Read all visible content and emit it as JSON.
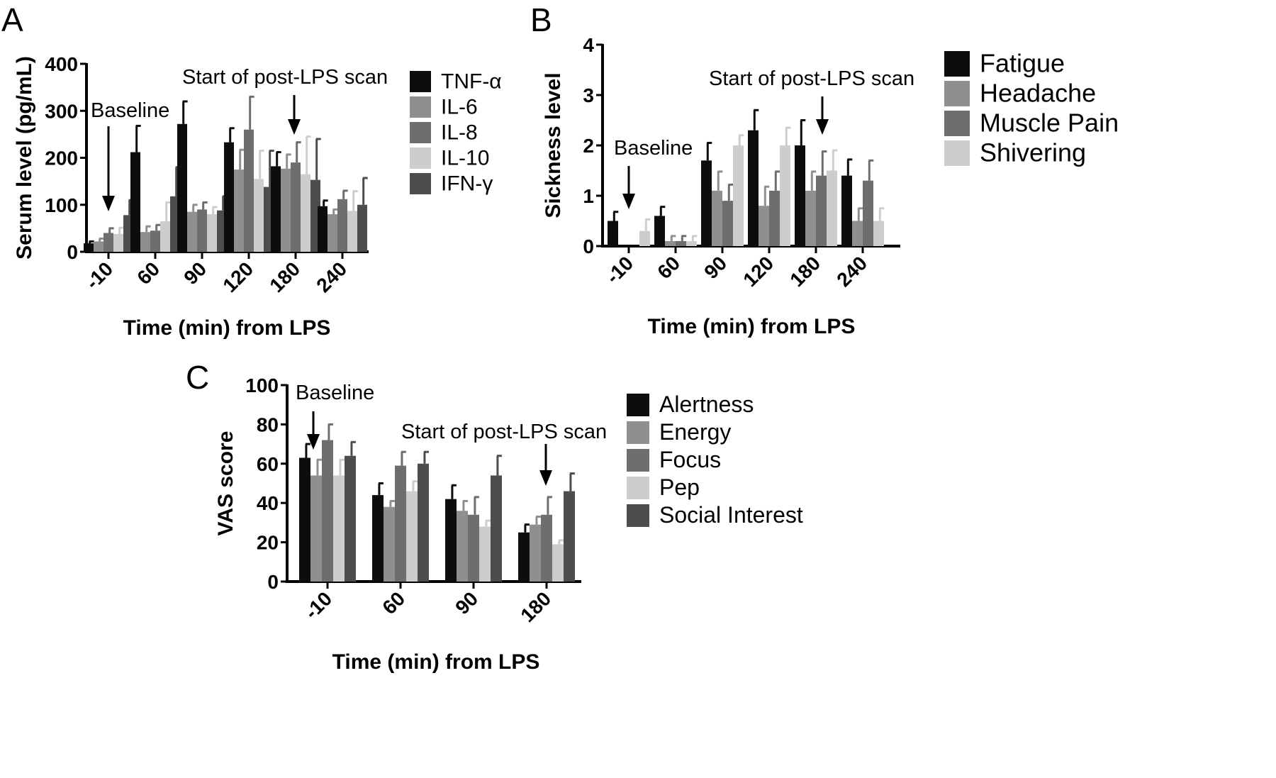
{
  "chart_data": [
    {
      "panel": "A",
      "type": "bar",
      "ylabel": "Serum level (pg/mL)",
      "xlabel": "Time (min) from LPS",
      "ylim": [
        0,
        400
      ],
      "yticks": [
        0,
        100,
        200,
        300,
        400
      ],
      "categories": [
        "-10",
        "60",
        "90",
        "120",
        "180",
        "240"
      ],
      "series": [
        {
          "name": "TNF-α",
          "color": "#0d0d0d",
          "values": [
            18,
            212,
            272,
            233,
            182,
            97
          ],
          "errors": [
            4,
            56,
            48,
            30,
            30,
            12
          ]
        },
        {
          "name": "IL-6",
          "color": "#8f8f8f",
          "values": [
            22,
            42,
            85,
            175,
            177,
            80
          ],
          "errors": [
            6,
            12,
            15,
            42,
            30,
            10
          ]
        },
        {
          "name": "IL-8",
          "color": "#6e6e6e",
          "values": [
            40,
            45,
            90,
            260,
            190,
            112
          ],
          "errors": [
            10,
            12,
            15,
            70,
            43,
            18
          ]
        },
        {
          "name": "IL-10",
          "color": "#cdcdcd",
          "values": [
            38,
            65,
            80,
            155,
            165,
            87
          ],
          "errors": [
            13,
            40,
            15,
            60,
            80,
            42
          ]
        },
        {
          "name": "IFN-γ",
          "color": "#4d4d4d",
          "values": [
            78,
            118,
            88,
            138,
            153,
            100
          ],
          "errors": [
            32,
            62,
            30,
            77,
            87,
            57
          ]
        }
      ],
      "annotations": [
        {
          "text": "Baseline",
          "category": "-10"
        },
        {
          "text": "Start of post-LPS scan",
          "category": "180"
        }
      ]
    },
    {
      "panel": "B",
      "type": "bar",
      "ylabel": "Sickness level",
      "xlabel": "Time (min) from LPS",
      "ylim": [
        0,
        4
      ],
      "yticks": [
        0,
        1,
        2,
        3,
        4
      ],
      "categories": [
        "-10",
        "60",
        "90",
        "120",
        "180",
        "240"
      ],
      "series": [
        {
          "name": "Fatigue",
          "color": "#0d0d0d",
          "values": [
            0.5,
            0.6,
            1.7,
            2.3,
            2.0,
            1.4
          ],
          "errors": [
            0.18,
            0.18,
            0.35,
            0.4,
            0.5,
            0.32
          ]
        },
        {
          "name": "Headache",
          "color": "#8f8f8f",
          "values": [
            0.0,
            0.1,
            1.1,
            0.8,
            1.1,
            0.5
          ],
          "errors": [
            0.0,
            0.1,
            0.38,
            0.38,
            0.38,
            0.25
          ]
        },
        {
          "name": "Muscle Pain",
          "color": "#6e6e6e",
          "values": [
            0.0,
            0.1,
            0.9,
            1.1,
            1.4,
            1.3
          ],
          "errors": [
            0.0,
            0.1,
            0.32,
            0.38,
            0.48,
            0.4
          ]
        },
        {
          "name": "Shivering",
          "color": "#cdcdcd",
          "values": [
            0.3,
            0.1,
            2.0,
            2.0,
            1.5,
            0.5
          ],
          "errors": [
            0.23,
            0.1,
            0.2,
            0.35,
            0.4,
            0.25
          ]
        }
      ],
      "annotations": [
        {
          "text": "Baseline",
          "category": "-10"
        },
        {
          "text": "Start of post-LPS scan",
          "category": "180"
        }
      ]
    },
    {
      "panel": "C",
      "type": "bar",
      "ylabel": "VAS score",
      "xlabel": "Time (min) from LPS",
      "ylim": [
        0,
        100
      ],
      "yticks": [
        0,
        20,
        40,
        60,
        80,
        100
      ],
      "categories": [
        "-10",
        "60",
        "90",
        "180"
      ],
      "series": [
        {
          "name": "Alertness",
          "color": "#0d0d0d",
          "values": [
            63,
            44,
            42,
            25
          ],
          "errors": [
            7,
            6,
            7,
            4
          ]
        },
        {
          "name": "Energy",
          "color": "#8f8f8f",
          "values": [
            54,
            38,
            36,
            29
          ],
          "errors": [
            8,
            3,
            5,
            4
          ]
        },
        {
          "name": "Focus",
          "color": "#6e6e6e",
          "values": [
            72,
            59,
            34,
            34
          ],
          "errors": [
            8,
            7,
            9,
            9
          ]
        },
        {
          "name": "Pep",
          "color": "#cdcdcd",
          "values": [
            54,
            46,
            28,
            19
          ],
          "errors": [
            8,
            5,
            3,
            2
          ]
        },
        {
          "name": "Social Interest",
          "color": "#4d4d4d",
          "values": [
            64,
            60,
            54,
            46
          ],
          "errors": [
            7,
            6,
            10,
            9
          ]
        }
      ],
      "annotations": [
        {
          "text": "Baseline",
          "category": "-10"
        },
        {
          "text": "Start of post-LPS scan",
          "category": "180"
        }
      ]
    }
  ]
}
